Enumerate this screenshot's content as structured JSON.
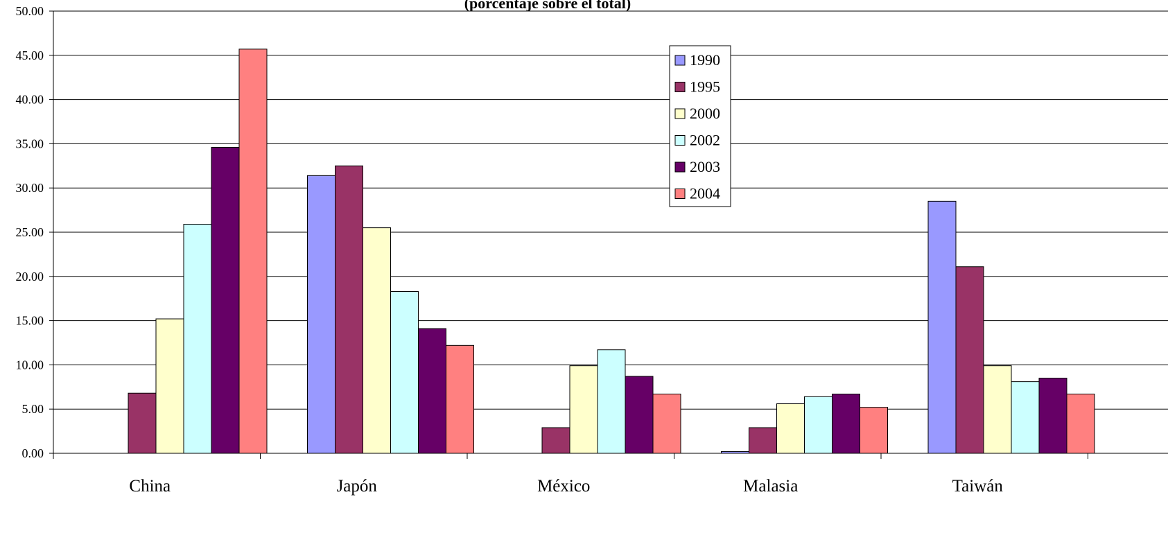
{
  "chart_data": {
    "type": "bar",
    "title": "(porcentaje sobre el total)",
    "categories": [
      "China",
      "Japón",
      "México",
      "Malasia",
      "Taiwán"
    ],
    "ylim": [
      0,
      50
    ],
    "y_ticks": [
      "0.00",
      "5.00",
      "10.00",
      "15.00",
      "20.00",
      "25.00",
      "30.00",
      "35.00",
      "40.00",
      "45.00",
      "50.00"
    ],
    "grid": true,
    "legend_position": "top-center",
    "series": [
      {
        "name": "1990",
        "color": "#9999FF",
        "values": [
          0,
          31.4,
          0,
          0.2,
          28.5
        ]
      },
      {
        "name": "1995",
        "color": "#993366",
        "values": [
          6.8,
          32.5,
          2.9,
          2.9,
          21.1
        ]
      },
      {
        "name": "2000",
        "color": "#FFFFCC",
        "values": [
          15.2,
          25.5,
          9.9,
          5.6,
          9.9
        ]
      },
      {
        "name": "2002",
        "color": "#CCFFFF",
        "values": [
          25.9,
          18.3,
          11.7,
          6.4,
          8.1
        ]
      },
      {
        "name": "2003",
        "color": "#660066",
        "values": [
          34.6,
          14.1,
          8.7,
          6.7,
          8.5
        ]
      },
      {
        "name": "2004",
        "color": "#FF8080",
        "values": [
          45.7,
          12.2,
          6.7,
          5.2,
          6.7
        ]
      }
    ]
  }
}
